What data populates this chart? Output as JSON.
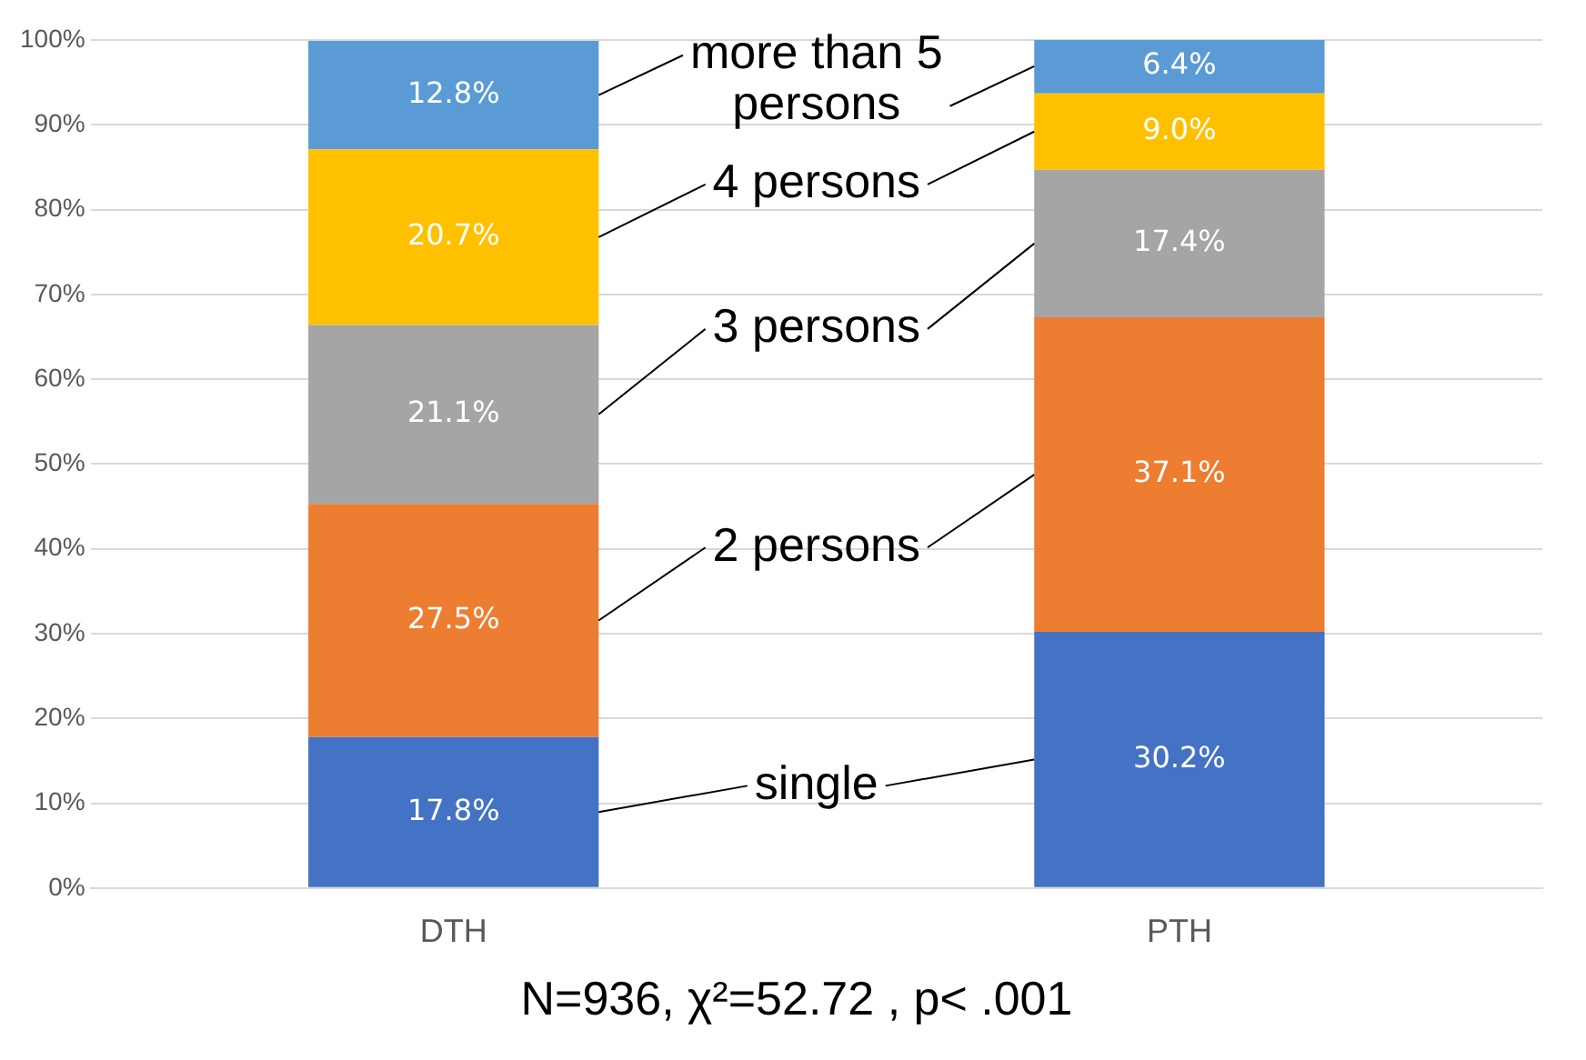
{
  "chart_data": {
    "type": "bar",
    "stacked": true,
    "categories": [
      "DTH",
      "PTH"
    ],
    "series": [
      {
        "name": "single",
        "color": "#4472c4",
        "values": [
          17.8,
          30.2
        ],
        "value_labels": [
          "17.8%",
          "30.2%"
        ]
      },
      {
        "name": "2 persons",
        "color": "#ed7d31",
        "values": [
          27.5,
          37.1
        ],
        "value_labels": [
          "27.5%",
          "37.1%"
        ]
      },
      {
        "name": "3 persons",
        "color": "#a5a5a5",
        "values": [
          21.1,
          17.4
        ],
        "value_labels": [
          "21.1%",
          "17.4%"
        ]
      },
      {
        "name": "4 persons",
        "color": "#ffc000",
        "values": [
          20.7,
          9.0
        ],
        "value_labels": [
          "20.7%",
          "9.0%"
        ]
      },
      {
        "name": "more than 5 persons",
        "color": "#5b9bd5",
        "values": [
          12.8,
          6.4
        ],
        "value_labels": [
          "12.8%",
          "6.4%"
        ]
      }
    ],
    "ylim": [
      0,
      100
    ],
    "yticks": [
      {
        "value": 0,
        "label": "0%"
      },
      {
        "value": 10,
        "label": "10%"
      },
      {
        "value": 20,
        "label": "20%"
      },
      {
        "value": 30,
        "label": "30%"
      },
      {
        "value": 40,
        "label": "40%"
      },
      {
        "value": 50,
        "label": "50%"
      },
      {
        "value": 60,
        "label": "60%"
      },
      {
        "value": 70,
        "label": "70%"
      },
      {
        "value": 80,
        "label": "80%"
      },
      {
        "value": 90,
        "label": "90%"
      },
      {
        "value": 100,
        "label": "100%"
      }
    ],
    "grid": "y",
    "legend": false,
    "annotations": [
      "N=936,  χ²=52.72 , p< .001"
    ]
  }
}
